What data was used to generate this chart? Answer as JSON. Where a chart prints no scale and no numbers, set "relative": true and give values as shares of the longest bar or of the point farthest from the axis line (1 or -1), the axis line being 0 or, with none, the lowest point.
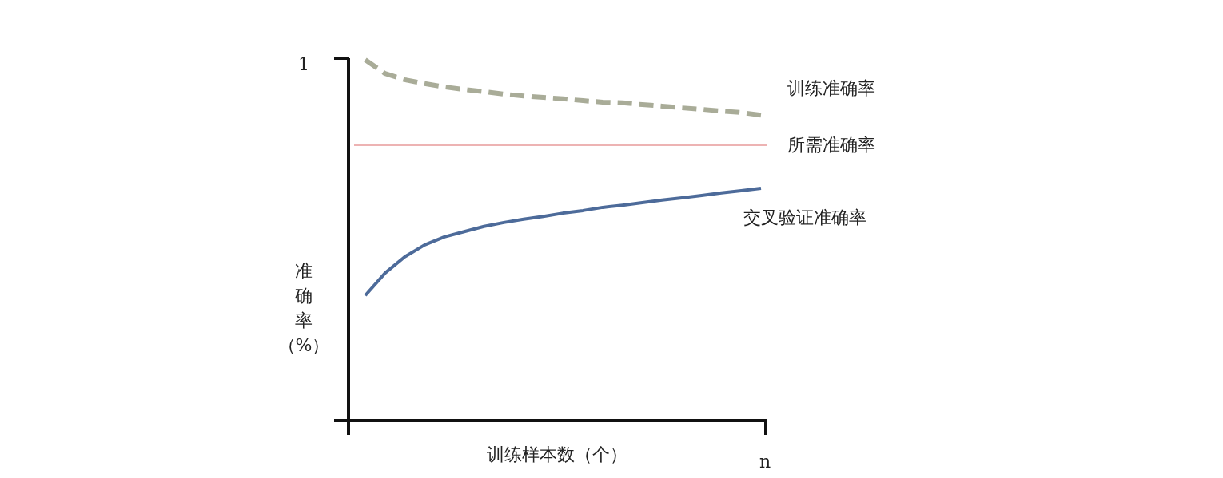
{
  "chart_data": {
    "type": "line",
    "relative": true,
    "xlabel": "训练样本数（个）",
    "ylabel": "准确率（%）",
    "annotations": [
      "1",
      "n"
    ],
    "legend": false,
    "categories": [
      null,
      null,
      null,
      null,
      null,
      null,
      null,
      null,
      null,
      null,
      null,
      null,
      null,
      null,
      null,
      null,
      null,
      null,
      null,
      null,
      null
    ],
    "series": [
      {
        "name": "训练准确率",
        "color": "#a9ac98",
        "line_style": "dashed",
        "values": [
          1.0,
          0.962,
          0.945,
          0.934,
          0.925,
          0.918,
          0.912,
          0.905,
          0.9,
          0.896,
          0.892,
          0.887,
          0.883,
          0.881,
          0.876,
          0.872,
          0.867,
          0.863,
          0.858,
          0.854,
          0.847
        ]
      },
      {
        "name": "交叉验证准确率",
        "color": "#4d6b9a",
        "line_style": "solid",
        "values": [
          0.347,
          0.409,
          0.454,
          0.487,
          0.509,
          0.524,
          0.538,
          0.549,
          0.558,
          0.566,
          0.575,
          0.582,
          0.591,
          0.597,
          0.604,
          0.611,
          0.617,
          0.624,
          0.631,
          0.637,
          0.644
        ]
      }
    ],
    "ref_lines": [
      {
        "axis": "y",
        "value": 0.763,
        "label": "所需准确率",
        "color": "#e79a9a",
        "line_style": "solid"
      }
    ]
  }
}
